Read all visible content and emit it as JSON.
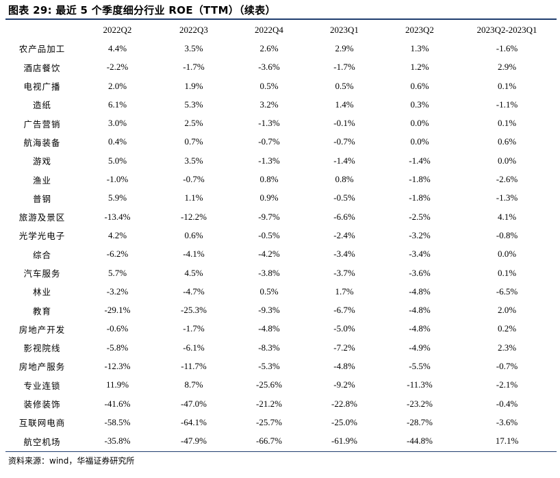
{
  "title": "图表 29:  最近 5 个季度细分行业 ROE（TTM）（续表）",
  "table": {
    "headers": [
      "",
      "2022Q2",
      "2022Q3",
      "2022Q4",
      "2023Q1",
      "2023Q2",
      "2023Q2-2023Q1"
    ],
    "rows": [
      [
        "农产品加工",
        "4.4%",
        "3.5%",
        "2.6%",
        "2.9%",
        "1.3%",
        "-1.6%"
      ],
      [
        "酒店餐饮",
        "-2.2%",
        "-1.7%",
        "-3.6%",
        "-1.7%",
        "1.2%",
        "2.9%"
      ],
      [
        "电视广播",
        "2.0%",
        "1.9%",
        "0.5%",
        "0.5%",
        "0.6%",
        "0.1%"
      ],
      [
        "造纸",
        "6.1%",
        "5.3%",
        "3.2%",
        "1.4%",
        "0.3%",
        "-1.1%"
      ],
      [
        "广告营销",
        "3.0%",
        "2.5%",
        "-1.3%",
        "-0.1%",
        "0.0%",
        "0.1%"
      ],
      [
        "航海装备",
        "0.4%",
        "0.7%",
        "-0.7%",
        "-0.7%",
        "0.0%",
        "0.6%"
      ],
      [
        "游戏",
        "5.0%",
        "3.5%",
        "-1.3%",
        "-1.4%",
        "-1.4%",
        "0.0%"
      ],
      [
        "渔业",
        "-1.0%",
        "-0.7%",
        "0.8%",
        "0.8%",
        "-1.8%",
        "-2.6%"
      ],
      [
        "普钢",
        "5.9%",
        "1.1%",
        "0.9%",
        "-0.5%",
        "-1.8%",
        "-1.3%"
      ],
      [
        "旅游及景区",
        "-13.4%",
        "-12.2%",
        "-9.7%",
        "-6.6%",
        "-2.5%",
        "4.1%"
      ],
      [
        "光学光电子",
        "4.2%",
        "0.6%",
        "-0.5%",
        "-2.4%",
        "-3.2%",
        "-0.8%"
      ],
      [
        "综合",
        "-6.2%",
        "-4.1%",
        "-4.2%",
        "-3.4%",
        "-3.4%",
        "0.0%"
      ],
      [
        "汽车服务",
        "5.7%",
        "4.5%",
        "-3.8%",
        "-3.7%",
        "-3.6%",
        "0.1%"
      ],
      [
        "林业",
        "-3.2%",
        "-4.7%",
        "0.5%",
        "1.7%",
        "-4.8%",
        "-6.5%"
      ],
      [
        "教育",
        "-29.1%",
        "-25.3%",
        "-9.3%",
        "-6.7%",
        "-4.8%",
        "2.0%"
      ],
      [
        "房地产开发",
        "-0.6%",
        "-1.7%",
        "-4.8%",
        "-5.0%",
        "-4.8%",
        "0.2%"
      ],
      [
        "影视院线",
        "-5.8%",
        "-6.1%",
        "-8.3%",
        "-7.2%",
        "-4.9%",
        "2.3%"
      ],
      [
        "房地产服务",
        "-12.3%",
        "-11.7%",
        "-5.3%",
        "-4.8%",
        "-5.5%",
        "-0.7%"
      ],
      [
        "专业连锁",
        "11.9%",
        "8.7%",
        "-25.6%",
        "-9.2%",
        "-11.3%",
        "-2.1%"
      ],
      [
        "装修装饰",
        "-41.6%",
        "-47.0%",
        "-21.2%",
        "-22.8%",
        "-23.2%",
        "-0.4%"
      ],
      [
        "互联网电商",
        "-58.5%",
        "-64.1%",
        "-25.7%",
        "-25.0%",
        "-28.7%",
        "-3.6%"
      ],
      [
        "航空机场",
        "-35.8%",
        "-47.9%",
        "-66.7%",
        "-61.9%",
        "-44.8%",
        "17.1%"
      ]
    ]
  },
  "source": "资料来源：wind，华福证券研究所",
  "colors": {
    "rule": "#1f3c6e",
    "text": "#000000"
  }
}
